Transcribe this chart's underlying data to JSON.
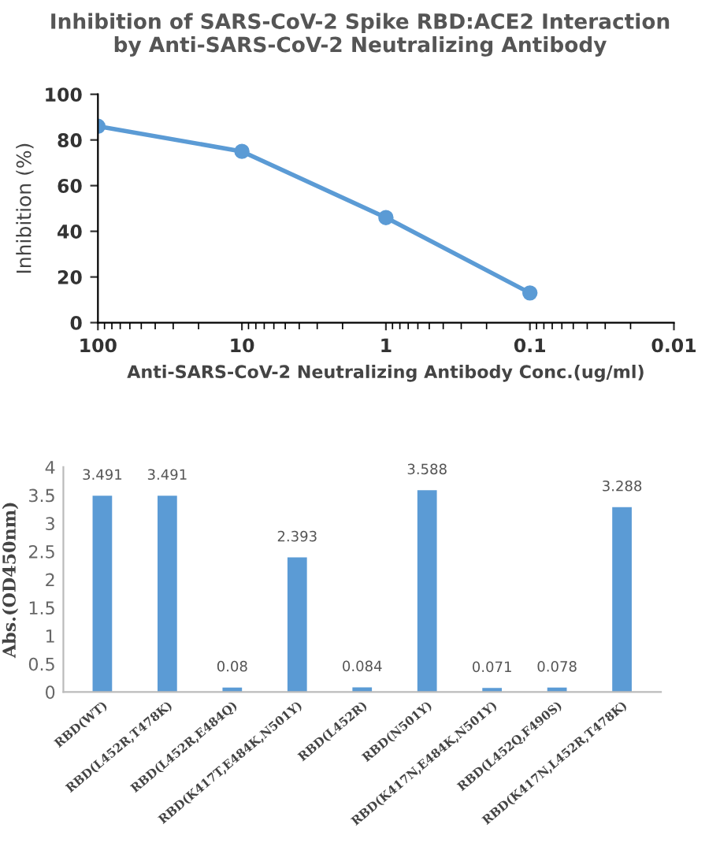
{
  "chart_data": [
    {
      "type": "line",
      "title": "Inhibition of SARS-CoV-2 Spike RBD:ACE2 Interaction\nby Anti-SARS-CoV-2 Neutralizing Antibody",
      "xlabel": "Anti-SARS-CoV-2 Neutralizing Antibody Conc.(ug/ml)",
      "ylabel": "Inhibition (%)",
      "log": "x",
      "x": [
        100,
        10,
        1,
        0.1
      ],
      "series": [
        {
          "color": "#5b9bd5",
          "values": [
            86,
            75,
            46,
            13
          ]
        }
      ],
      "xlim": [
        100,
        0.01
      ],
      "xticks": [
        100,
        10,
        1,
        0.1,
        0.01
      ],
      "ylim": [
        0,
        100
      ],
      "yticks": [
        0,
        20,
        40,
        60,
        80,
        100
      ],
      "marker": "circle",
      "line_style": "solid",
      "grid": false,
      "legend": false
    },
    {
      "type": "bar",
      "ylabel": "Abs.(OD450nm)",
      "categories": [
        "RBD(WT)",
        "RBD(L452R,T478K)",
        "RBD(L452R,E484Q)",
        "RBD(K417T,E484K,N501Y)",
        "RBD(L452R)",
        "RBD(N501Y)",
        "RBD(K417N,E484K,N501Y)",
        "RBD(L452Q,F490S)",
        "RBD(K417N,L452R,T478K)"
      ],
      "series": [
        {
          "color": "#5b9bd5",
          "values": [
            3.491,
            3.491,
            0.08,
            2.393,
            0.084,
            3.588,
            0.071,
            0.078,
            3.288
          ]
        }
      ],
      "ylim": [
        0,
        4
      ],
      "yticks": [
        0,
        0.5,
        1,
        1.5,
        2,
        2.5,
        3,
        3.5,
        4
      ],
      "data_labels": true,
      "grid": false,
      "legend": false
    }
  ]
}
